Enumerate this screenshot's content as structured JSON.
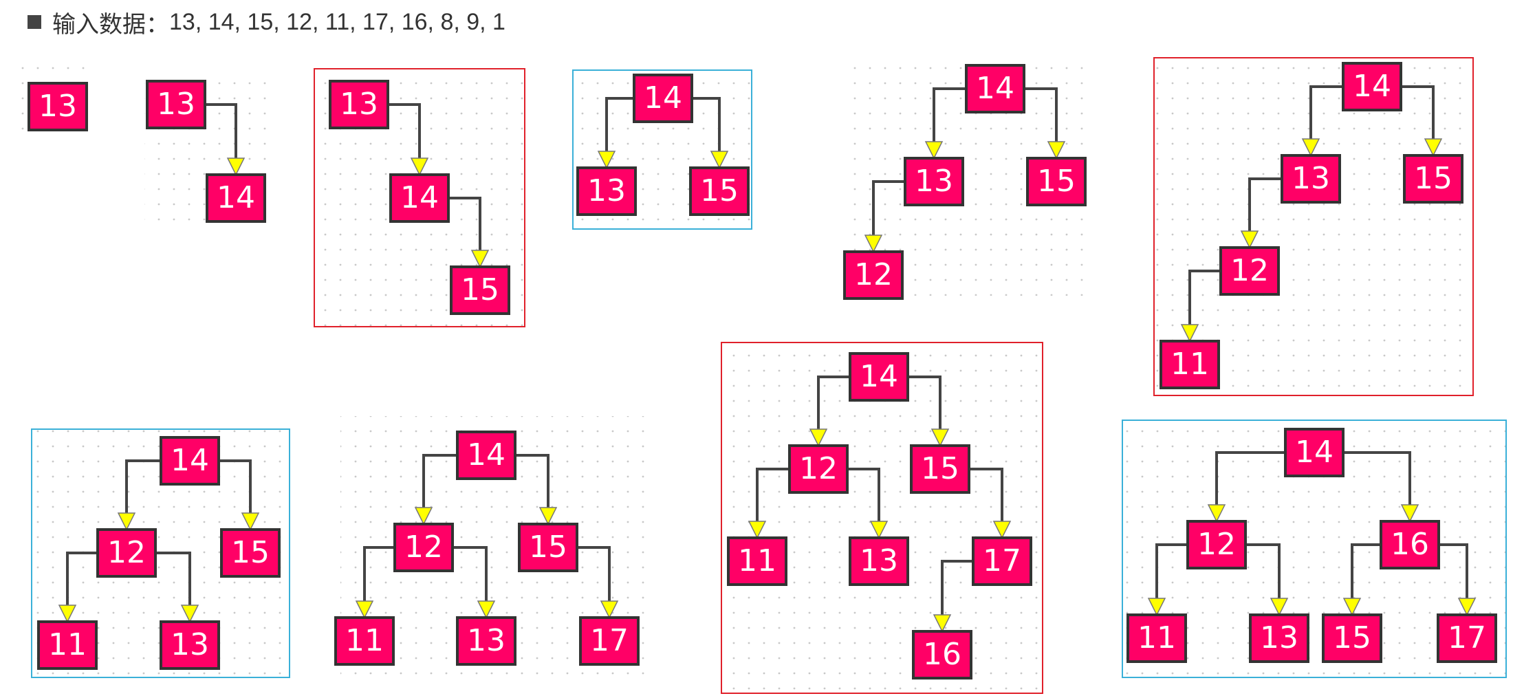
{
  "header": {
    "label": "输入数据：",
    "values": "13, 14, 15, 12, 11, 17, 16, 8, 9, 1"
  },
  "colors": {
    "node_fill": "#ff0066",
    "node_stroke": "#333333",
    "edge": "#444444",
    "arrow_fill": "#ffff00",
    "frame_red": "#e0202a",
    "frame_blue": "#3ab0d8",
    "dot": "#c8c8c8"
  },
  "trees": [
    {
      "frame": "none",
      "nodes": [
        {
          "label": "13"
        }
      ],
      "edges": []
    },
    {
      "frame": "none",
      "nodes": [
        {
          "label": "13"
        },
        {
          "label": "14"
        }
      ],
      "edges": [
        [
          0,
          1
        ]
      ]
    },
    {
      "frame": "red",
      "nodes": [
        {
          "label": "13"
        },
        {
          "label": "14"
        },
        {
          "label": "15"
        }
      ],
      "edges": [
        [
          0,
          1
        ],
        [
          1,
          2
        ]
      ]
    },
    {
      "frame": "blue",
      "nodes": [
        {
          "label": "14"
        },
        {
          "label": "13"
        },
        {
          "label": "15"
        }
      ],
      "edges": [
        [
          0,
          1
        ],
        [
          0,
          2
        ]
      ]
    },
    {
      "frame": "none",
      "nodes": [
        {
          "label": "14"
        },
        {
          "label": "13"
        },
        {
          "label": "15"
        },
        {
          "label": "12"
        }
      ],
      "edges": [
        [
          0,
          1
        ],
        [
          0,
          2
        ],
        [
          1,
          3
        ]
      ]
    },
    {
      "frame": "red",
      "nodes": [
        {
          "label": "14"
        },
        {
          "label": "13"
        },
        {
          "label": "15"
        },
        {
          "label": "12"
        },
        {
          "label": "11"
        }
      ],
      "edges": [
        [
          0,
          1
        ],
        [
          0,
          2
        ],
        [
          1,
          3
        ],
        [
          3,
          4
        ]
      ]
    },
    {
      "frame": "blue",
      "nodes": [
        {
          "label": "14"
        },
        {
          "label": "12"
        },
        {
          "label": "15"
        },
        {
          "label": "11"
        },
        {
          "label": "13"
        }
      ],
      "edges": [
        [
          0,
          1
        ],
        [
          0,
          2
        ],
        [
          1,
          3
        ],
        [
          1,
          4
        ]
      ]
    },
    {
      "frame": "none",
      "nodes": [
        {
          "label": "14"
        },
        {
          "label": "12"
        },
        {
          "label": "15"
        },
        {
          "label": "11"
        },
        {
          "label": "13"
        },
        {
          "label": "17"
        }
      ],
      "edges": [
        [
          0,
          1
        ],
        [
          0,
          2
        ],
        [
          1,
          3
        ],
        [
          1,
          4
        ],
        [
          2,
          5
        ]
      ]
    },
    {
      "frame": "red",
      "nodes": [
        {
          "label": "14"
        },
        {
          "label": "12"
        },
        {
          "label": "15"
        },
        {
          "label": "11"
        },
        {
          "label": "13"
        },
        {
          "label": "17"
        },
        {
          "label": "16"
        }
      ],
      "edges": [
        [
          0,
          1
        ],
        [
          0,
          2
        ],
        [
          1,
          3
        ],
        [
          1,
          4
        ],
        [
          2,
          5
        ],
        [
          5,
          6
        ]
      ]
    },
    {
      "frame": "blue",
      "nodes": [
        {
          "label": "14"
        },
        {
          "label": "12"
        },
        {
          "label": "16"
        },
        {
          "label": "11"
        },
        {
          "label": "13"
        },
        {
          "label": "15"
        },
        {
          "label": "17"
        }
      ],
      "edges": [
        [
          0,
          1
        ],
        [
          0,
          2
        ],
        [
          1,
          3
        ],
        [
          1,
          4
        ],
        [
          2,
          5
        ],
        [
          2,
          6
        ]
      ]
    }
  ]
}
